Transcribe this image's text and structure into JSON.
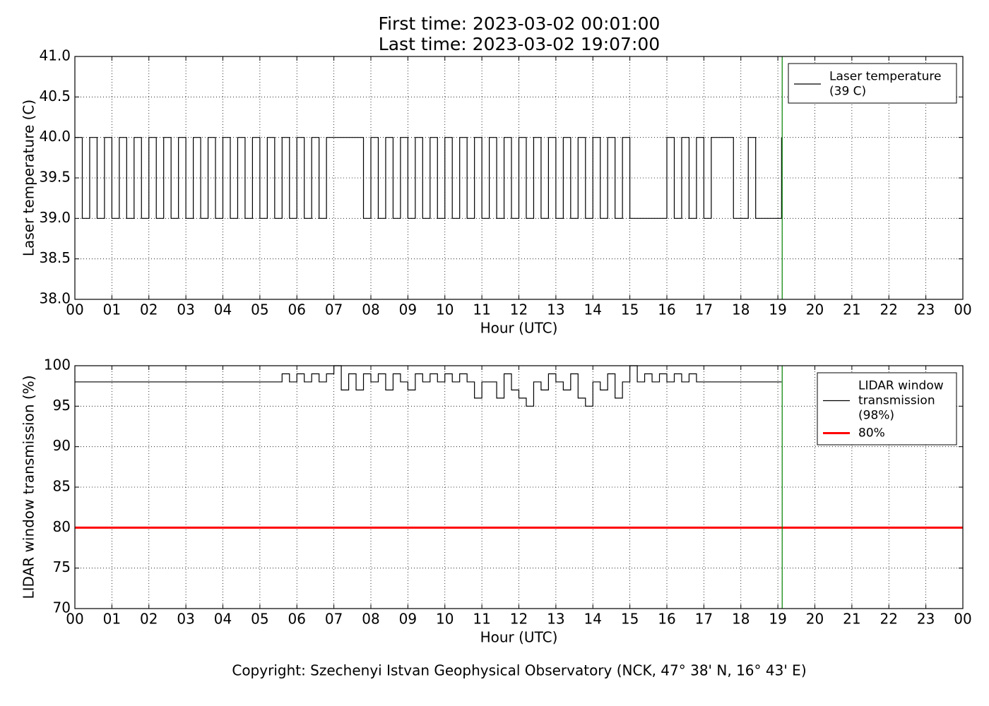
{
  "footer": "Copyright: Szechenyi Istvan Geophysical Observatory (NCK, 47° 38' N, 16° 43' E)",
  "chart_data": [
    {
      "type": "line",
      "drawstyle": "steps",
      "title": "First time: 2023-03-02 00:01:00",
      "subtitle": "Last time: 2023-03-02 19:07:00",
      "xlabel": "Hour (UTC)",
      "ylabel": "Laser temperature (C)",
      "xlim": [
        0,
        24
      ],
      "ylim": [
        38,
        41
      ],
      "xticks": [
        {
          "value": 0,
          "label": "00"
        },
        {
          "value": 1,
          "label": "01"
        },
        {
          "value": 2,
          "label": "02"
        },
        {
          "value": 3,
          "label": "03"
        },
        {
          "value": 4,
          "label": "04"
        },
        {
          "value": 5,
          "label": "05"
        },
        {
          "value": 6,
          "label": "06"
        },
        {
          "value": 7,
          "label": "07"
        },
        {
          "value": 8,
          "label": "08"
        },
        {
          "value": 9,
          "label": "09"
        },
        {
          "value": 10,
          "label": "10"
        },
        {
          "value": 11,
          "label": "11"
        },
        {
          "value": 12,
          "label": "12"
        },
        {
          "value": 13,
          "label": "13"
        },
        {
          "value": 14,
          "label": "14"
        },
        {
          "value": 15,
          "label": "15"
        },
        {
          "value": 16,
          "label": "16"
        },
        {
          "value": 17,
          "label": "17"
        },
        {
          "value": 18,
          "label": "18"
        },
        {
          "value": 19,
          "label": "19"
        },
        {
          "value": 20,
          "label": "20"
        },
        {
          "value": 21,
          "label": "21"
        },
        {
          "value": 22,
          "label": "22"
        },
        {
          "value": 23,
          "label": "23"
        },
        {
          "value": 24,
          "label": "00"
        }
      ],
      "yticks": [
        {
          "value": 38,
          "label": "38.0"
        },
        {
          "value": 38.5,
          "label": "38.5"
        },
        {
          "value": 39,
          "label": "39.0"
        },
        {
          "value": 39.5,
          "label": "39.5"
        },
        {
          "value": 40,
          "label": "40.0"
        },
        {
          "value": 40.5,
          "label": "40.5"
        },
        {
          "value": 41,
          "label": "41.0"
        }
      ],
      "grid": true,
      "legend": "upper right",
      "vline": {
        "value": 19.1167,
        "color": "#008000"
      },
      "series": [
        {
          "name": "Laser temperature\n(39 C)",
          "color": "#000000",
          "x": [
            0,
            0.2,
            0.4,
            0.6,
            0.8,
            1.0,
            1.2,
            1.4,
            1.6,
            1.8,
            2.0,
            2.2,
            2.4,
            2.6,
            2.8,
            3.0,
            3.2,
            3.4,
            3.6,
            3.8,
            4.0,
            4.2,
            4.4,
            4.6,
            4.8,
            5.0,
            5.2,
            5.4,
            5.6,
            5.8,
            6.0,
            6.2,
            6.4,
            6.6,
            6.8,
            7.0,
            7.2,
            7.4,
            7.6,
            7.8,
            8.0,
            8.2,
            8.4,
            8.6,
            8.8,
            9.0,
            9.2,
            9.4,
            9.6,
            9.8,
            10.0,
            10.2,
            10.4,
            10.6,
            10.8,
            11.0,
            11.2,
            11.4,
            11.6,
            11.8,
            12.0,
            12.2,
            12.4,
            12.6,
            12.8,
            13.0,
            13.2,
            13.4,
            13.6,
            13.8,
            14.0,
            14.2,
            14.4,
            14.6,
            14.8,
            15.0,
            15.2,
            15.4,
            15.6,
            15.8,
            16.0,
            16.2,
            16.4,
            16.6,
            16.8,
            17.0,
            17.2,
            17.4,
            17.6,
            17.8,
            18.0,
            18.2,
            18.4,
            18.6,
            18.8,
            19.0,
            19.1
          ],
          "values": [
            40,
            39,
            40,
            39,
            40,
            39,
            40,
            39,
            40,
            39,
            40,
            39,
            40,
            39,
            40,
            39,
            40,
            39,
            40,
            39,
            40,
            39,
            40,
            39,
            40,
            39,
            40,
            39,
            40,
            39,
            40,
            39,
            40,
            39,
            40,
            40,
            40,
            40,
            40,
            39,
            40,
            39,
            40,
            39,
            40,
            39,
            40,
            39,
            40,
            39,
            40,
            39,
            40,
            39,
            40,
            39,
            40,
            39,
            40,
            39,
            40,
            39,
            40,
            39,
            40,
            39,
            40,
            39,
            40,
            39,
            40,
            39,
            40,
            39,
            40,
            39,
            39,
            39,
            39,
            39,
            40,
            39,
            40,
            39,
            40,
            39,
            40,
            40,
            40,
            39,
            39,
            40,
            39,
            39,
            39,
            39,
            40
          ]
        }
      ]
    },
    {
      "type": "line",
      "drawstyle": "steps",
      "xlabel": "Hour (UTC)",
      "ylabel": "LIDAR window transmission (%)",
      "xlim": [
        0,
        24
      ],
      "ylim": [
        70,
        100
      ],
      "xticks": [
        {
          "value": 0,
          "label": "00"
        },
        {
          "value": 1,
          "label": "01"
        },
        {
          "value": 2,
          "label": "02"
        },
        {
          "value": 3,
          "label": "03"
        },
        {
          "value": 4,
          "label": "04"
        },
        {
          "value": 5,
          "label": "05"
        },
        {
          "value": 6,
          "label": "06"
        },
        {
          "value": 7,
          "label": "07"
        },
        {
          "value": 8,
          "label": "08"
        },
        {
          "value": 9,
          "label": "09"
        },
        {
          "value": 10,
          "label": "10"
        },
        {
          "value": 11,
          "label": "11"
        },
        {
          "value": 12,
          "label": "12"
        },
        {
          "value": 13,
          "label": "13"
        },
        {
          "value": 14,
          "label": "14"
        },
        {
          "value": 15,
          "label": "15"
        },
        {
          "value": 16,
          "label": "16"
        },
        {
          "value": 17,
          "label": "17"
        },
        {
          "value": 18,
          "label": "18"
        },
        {
          "value": 19,
          "label": "19"
        },
        {
          "value": 20,
          "label": "20"
        },
        {
          "value": 21,
          "label": "21"
        },
        {
          "value": 22,
          "label": "22"
        },
        {
          "value": 23,
          "label": "23"
        },
        {
          "value": 24,
          "label": "00"
        }
      ],
      "yticks": [
        70,
        75,
        80,
        85,
        90,
        95,
        100
      ],
      "grid": true,
      "legend": "upper right",
      "vline": {
        "value": 19.1167,
        "color": "#008000"
      },
      "series": [
        {
          "name": "LIDAR window\ntransmission\n(98%)",
          "color": "#000000",
          "x": [
            0,
            0.2,
            0.4,
            0.6,
            0.8,
            1.0,
            1.2,
            1.4,
            1.6,
            1.8,
            2.0,
            2.2,
            2.4,
            2.6,
            2.8,
            3.0,
            3.2,
            3.4,
            3.6,
            3.8,
            4.0,
            4.2,
            4.4,
            4.6,
            4.8,
            5.0,
            5.2,
            5.4,
            5.6,
            5.8,
            6.0,
            6.2,
            6.4,
            6.6,
            6.8,
            7.0,
            7.2,
            7.4,
            7.6,
            7.8,
            8.0,
            8.2,
            8.4,
            8.6,
            8.8,
            9.0,
            9.2,
            9.4,
            9.6,
            9.8,
            10.0,
            10.2,
            10.4,
            10.6,
            10.8,
            11.0,
            11.2,
            11.4,
            11.6,
            11.8,
            12.0,
            12.2,
            12.4,
            12.6,
            12.8,
            13.0,
            13.2,
            13.4,
            13.6,
            13.8,
            14.0,
            14.2,
            14.4,
            14.6,
            14.8,
            15.0,
            15.2,
            15.4,
            15.6,
            15.8,
            16.0,
            16.2,
            16.4,
            16.6,
            16.8,
            17.0,
            17.2,
            17.4,
            17.6,
            17.8,
            18.0,
            18.2,
            18.4,
            18.6,
            18.8,
            19.0,
            19.1
          ],
          "values": [
            98,
            98,
            98,
            98,
            98,
            98,
            98,
            98,
            98,
            98,
            98,
            98,
            98,
            98,
            98,
            98,
            98,
            98,
            98,
            98,
            98,
            98,
            98,
            98,
            98,
            98,
            98,
            98,
            99,
            98,
            99,
            98,
            99,
            98,
            99,
            100,
            97,
            99,
            97,
            99,
            98,
            99,
            97,
            99,
            98,
            97,
            99,
            98,
            99,
            98,
            99,
            98,
            99,
            98,
            96,
            98,
            98,
            96,
            99,
            97,
            96,
            95,
            98,
            97,
            99,
            98,
            97,
            99,
            96,
            95,
            98,
            97,
            99,
            96,
            98,
            100,
            98,
            99,
            98,
            99,
            98,
            99,
            98,
            99,
            98,
            98,
            98,
            98,
            98,
            98,
            98,
            98,
            98,
            98,
            98,
            98,
            98
          ]
        },
        {
          "name": "80%",
          "color": "#ff0000",
          "width": 3,
          "x": [
            0,
            24
          ],
          "values": [
            80,
            80
          ]
        }
      ]
    }
  ]
}
